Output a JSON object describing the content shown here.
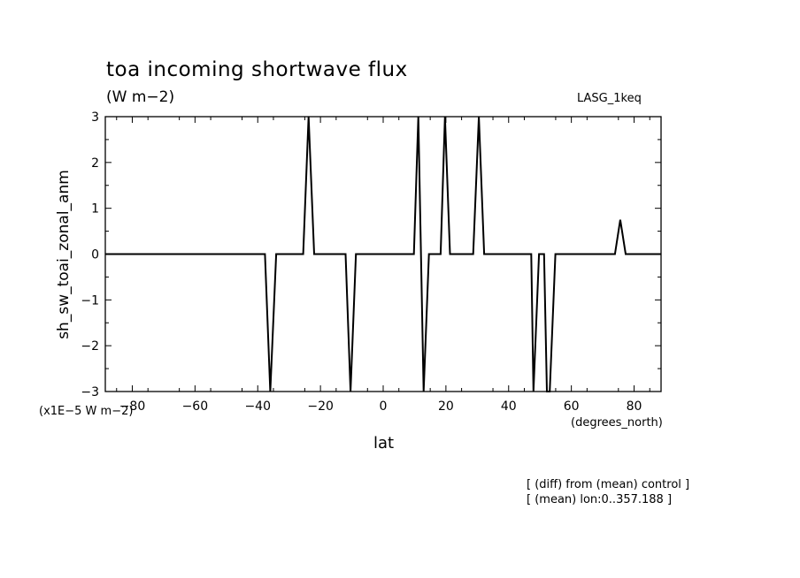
{
  "chart_data": {
    "type": "line",
    "title": "toa incoming shortwave flux",
    "units_label": "(W m−2)",
    "run_label": "LASG_1keq",
    "xlabel": "lat",
    "x_units": "(degrees_north)",
    "ylabel": "sh_sw_toai_zonal_anm",
    "y_scale_label": "(x1E−5 W m−2)",
    "xlim": [
      -88.6,
      88.6
    ],
    "ylim": [
      -3,
      3
    ],
    "x_ticks": [
      -80,
      -60,
      -40,
      -20,
      0,
      20,
      40,
      60,
      80
    ],
    "x_tick_labels": [
      "−80",
      "−60",
      "−40",
      "−20",
      "0",
      "20",
      "40",
      "60",
      "80"
    ],
    "y_ticks": [
      -3,
      -2,
      -1,
      0,
      1,
      2,
      3
    ],
    "y_tick_labels": [
      "−3",
      "−2",
      "−1",
      "0",
      "1",
      "2",
      "3"
    ],
    "grid": false,
    "series": [
      {
        "x": [
          -88.6,
          -37.7,
          -36.0,
          -34.1,
          -25.5,
          -23.8,
          -22.0,
          -12.0,
          -10.4,
          -8.7,
          9.8,
          11.2,
          12.9,
          14.6,
          18.3,
          19.7,
          21.3,
          28.7,
          30.5,
          32.2,
          47.2,
          47.9,
          49.7,
          51.3,
          52.2,
          53.1,
          54.9,
          73.9,
          75.6,
          77.3,
          88.6
        ],
        "y": [
          0,
          0,
          -3.0,
          0,
          0,
          3.0,
          0,
          0,
          -3.0,
          0,
          0,
          3.0,
          -3.0,
          0,
          0,
          3.0,
          0,
          0,
          3.0,
          0,
          0,
          -3.0,
          0,
          0,
          -3.0,
          -3.0,
          0,
          0,
          0.75,
          0,
          0
        ]
      }
    ]
  },
  "footnotes": [
    "[ (diff) from (mean) control ]",
    "[ (mean) lon:0..357.188 ]"
  ]
}
